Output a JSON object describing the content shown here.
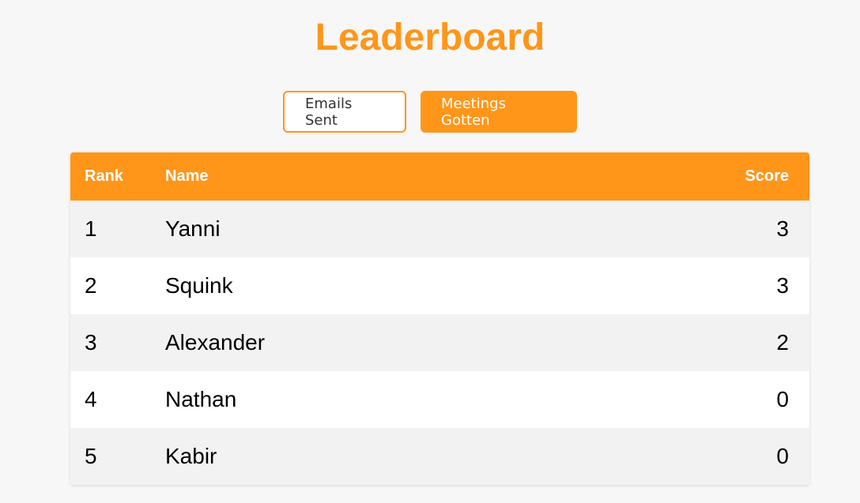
{
  "title": "Leaderboard",
  "tabs": [
    {
      "label": "Emails Sent",
      "active": false
    },
    {
      "label": "Meetings Gotten",
      "active": true
    }
  ],
  "accent": "#ff961a",
  "table": {
    "headers": {
      "rank": "Rank",
      "name": "Name",
      "score": "Score"
    },
    "rows": [
      {
        "rank": "1",
        "name": "Yanni",
        "score": "3"
      },
      {
        "rank": "2",
        "name": "Squink",
        "score": "3"
      },
      {
        "rank": "3",
        "name": "Alexander",
        "score": "2"
      },
      {
        "rank": "4",
        "name": "Nathan",
        "score": "0"
      },
      {
        "rank": "5",
        "name": "Kabir",
        "score": "0"
      }
    ]
  }
}
